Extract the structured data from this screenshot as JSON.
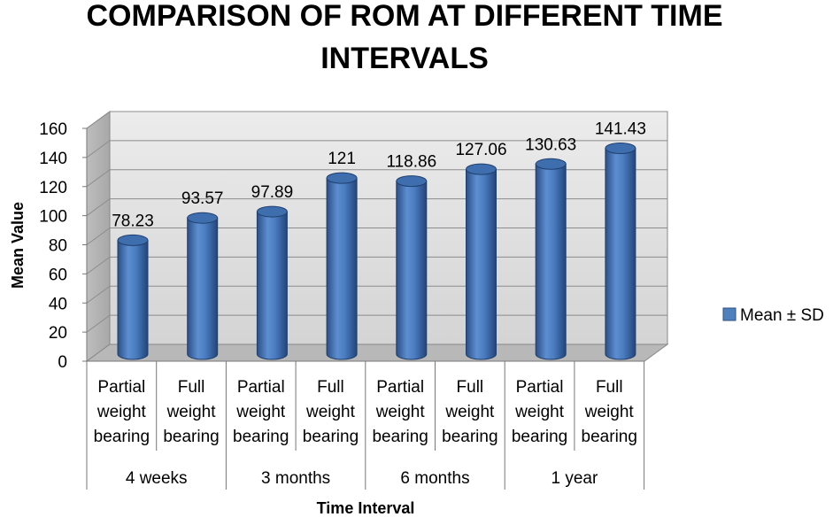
{
  "chart_data": {
    "type": "bar",
    "title": "COMPARISON OF ROM AT DIFFERENT TIME INTERVALS",
    "title_lines": [
      "COMPARISON OF ROM AT DIFFERENT TIME",
      "INTERVALS"
    ],
    "xlabel": "Time Interval",
    "ylabel": "Mean Value",
    "ylim": [
      0,
      160
    ],
    "yticks": [
      "0",
      "20",
      "40",
      "60",
      "80",
      "100",
      "120",
      "140",
      "160"
    ],
    "grid": true,
    "legend_position": "right",
    "groups": [
      "4 weeks",
      "3 months",
      "6 months",
      "1 year"
    ],
    "categories": [
      [
        "Partial",
        "weight",
        "bearing"
      ],
      [
        "Full",
        "weight",
        "bearing"
      ],
      [
        "Partial",
        "weight",
        "bearing"
      ],
      [
        "Full",
        "weight",
        "bearing"
      ],
      [
        "Partial",
        "weight",
        "bearing"
      ],
      [
        "Full",
        "weight",
        "bearing"
      ],
      [
        "Partial",
        "weight",
        "bearing"
      ],
      [
        "Full",
        "weight",
        "bearing"
      ]
    ],
    "series": [
      {
        "name": "Mean ± SD",
        "color": "#4F81BD",
        "values": [
          78.23,
          93.57,
          97.89,
          121,
          118.86,
          127.06,
          130.63,
          141.43
        ],
        "labels": [
          "78.23",
          "93.57",
          "97.89",
          "121",
          "118.86",
          "127.06",
          "130.63",
          "141.43"
        ]
      }
    ]
  }
}
